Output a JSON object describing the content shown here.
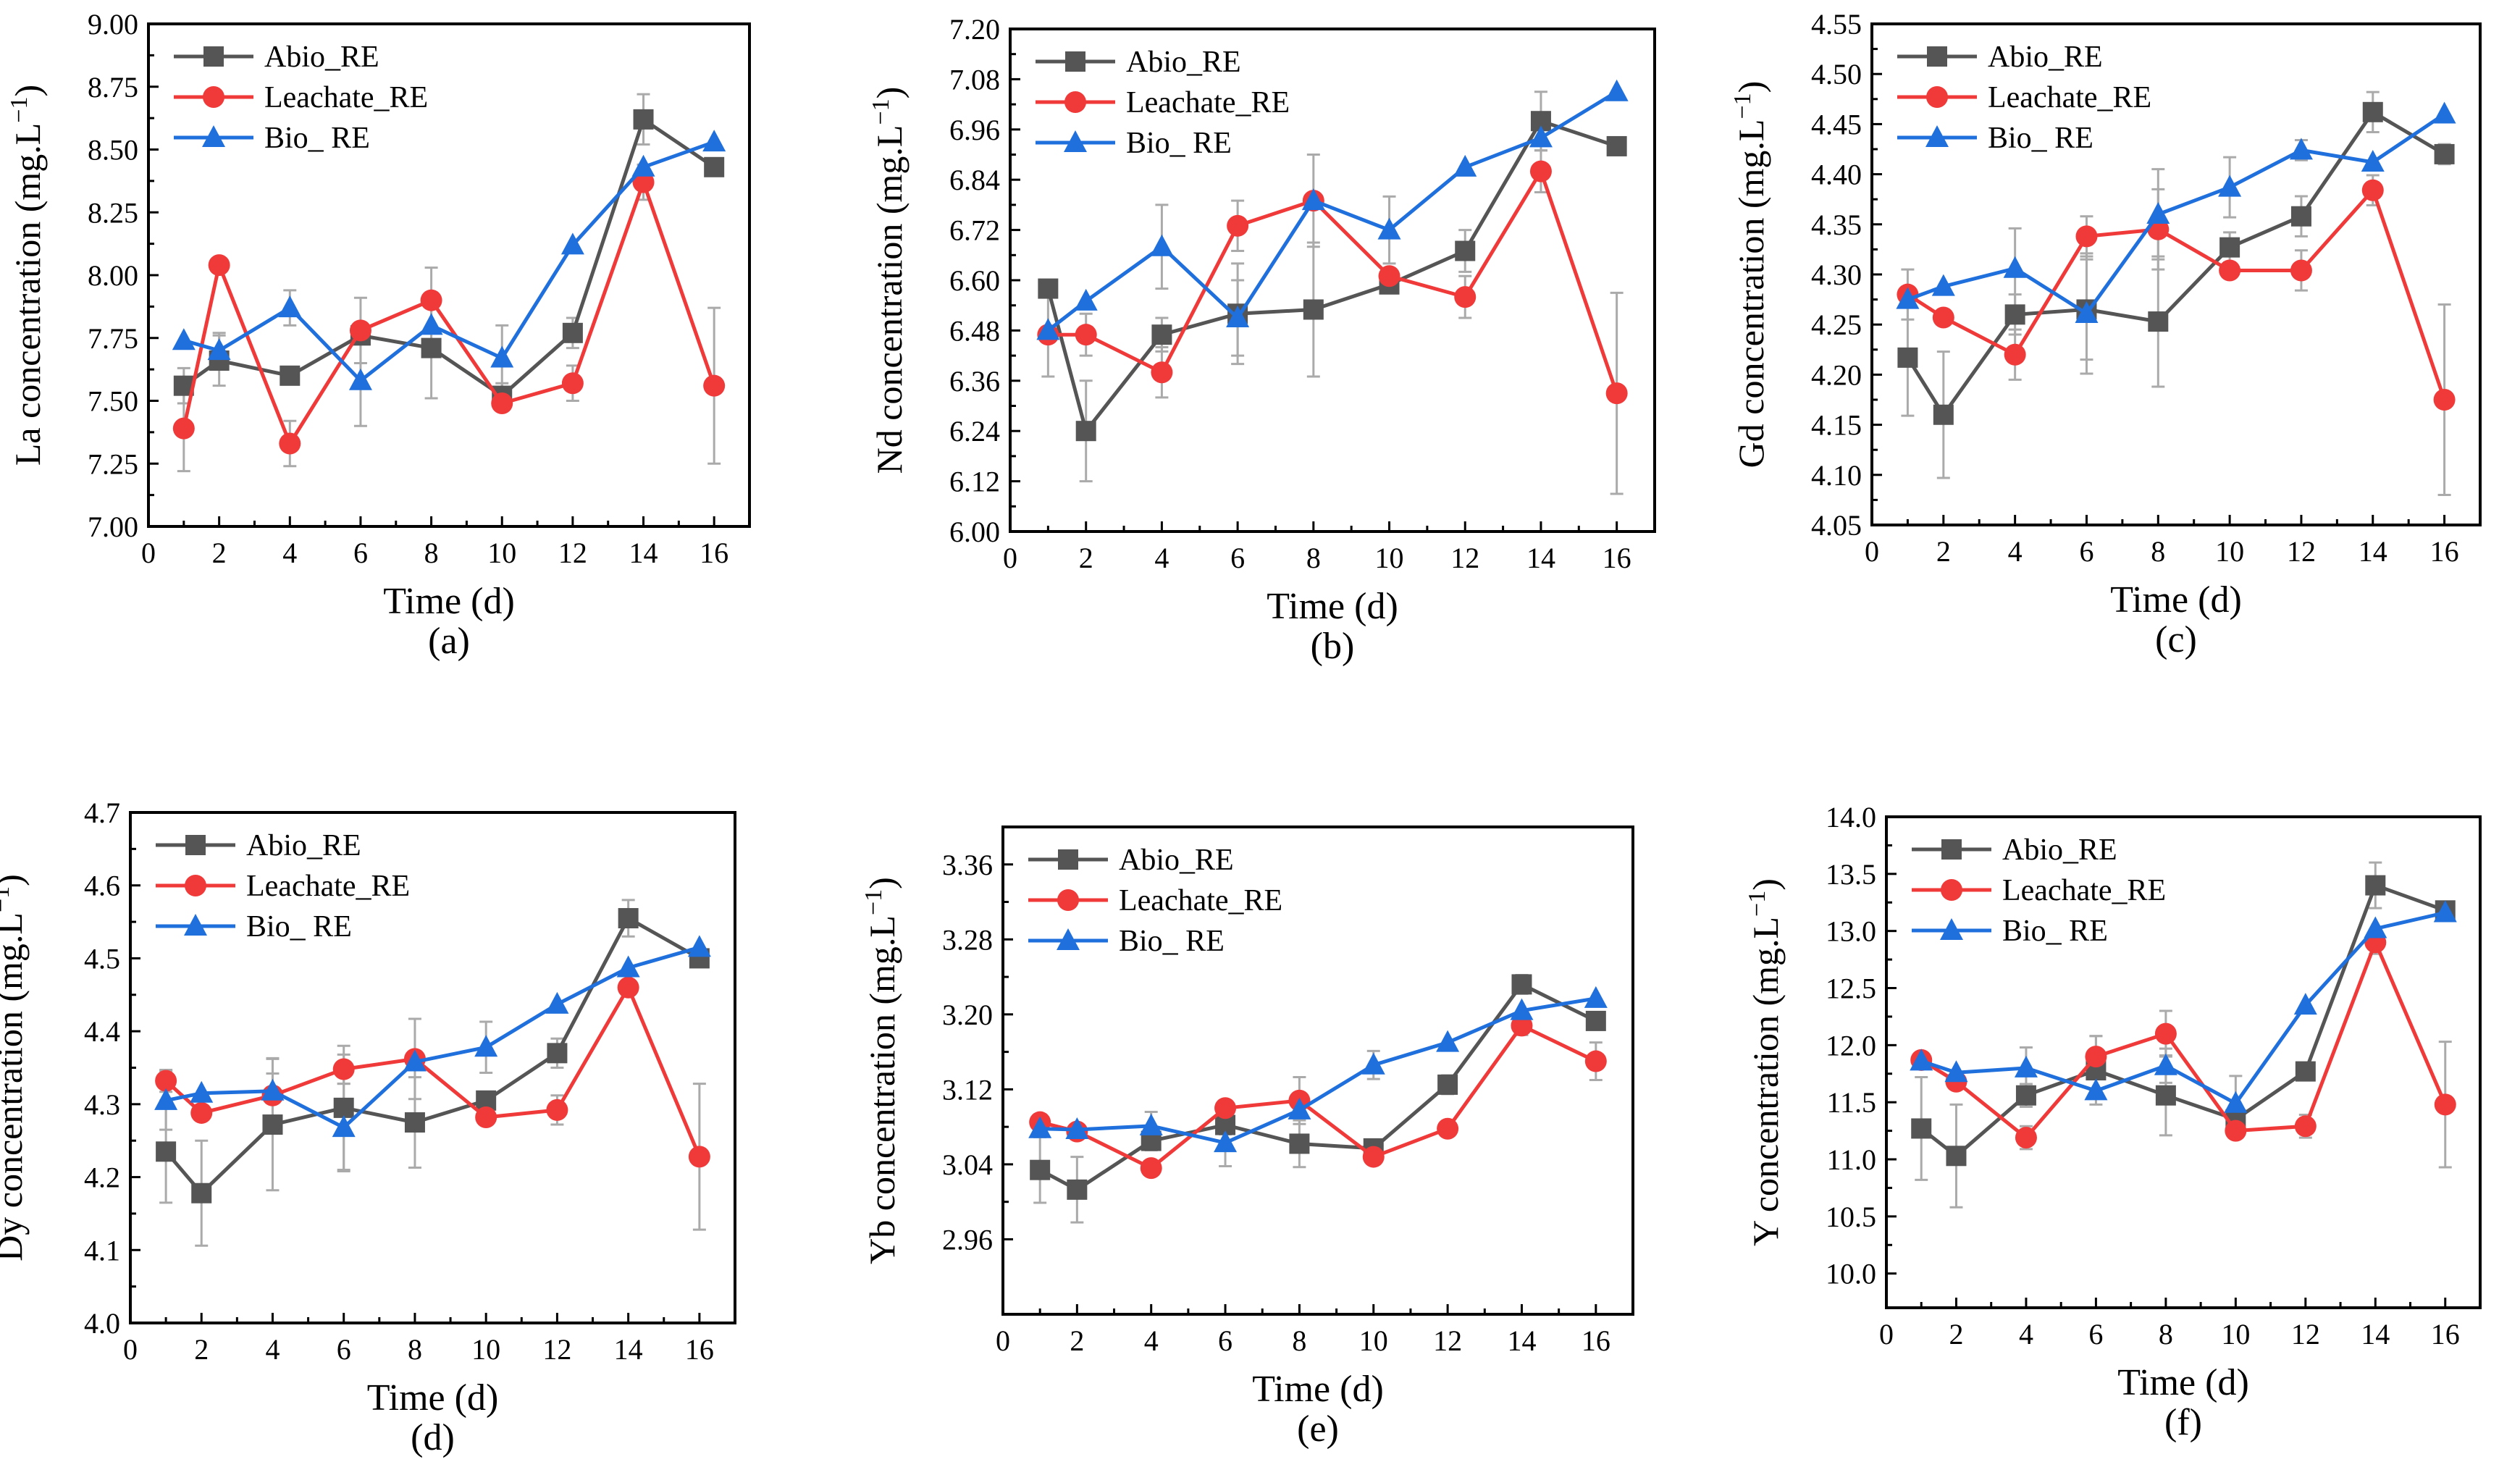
{
  "colors": {
    "abio": "#555555",
    "leachate": "#f03a3a",
    "bio": "#1f6fdc",
    "errorbar": "#aaaaaa",
    "axis": "#000000"
  },
  "legend_labels": [
    "Abio_RE",
    "Leachate_RE",
    "Bio_ RE"
  ],
  "xlabel": "Time (d)",
  "chart_data": [
    {
      "type": "line",
      "panel_label": "(a)",
      "ylabel": "La concentration (mg.L",
      "ylabel_sup": "−1",
      "legend_position": "top-left",
      "x": [
        1,
        2,
        4,
        6,
        8,
        10,
        12,
        14,
        16
      ],
      "xlim": [
        0,
        17
      ],
      "x_ticks": [
        "0",
        "2",
        "4",
        "6",
        "8",
        "10",
        "12",
        "14",
        "16"
      ],
      "ylim": [
        7.0,
        9.0
      ],
      "y_ticks": [
        "7.00",
        "7.25",
        "7.50",
        "7.75",
        "8.00",
        "8.25",
        "8.50",
        "8.75",
        "9.00"
      ],
      "series": [
        {
          "name": "Abio_RE",
          "values": [
            7.56,
            7.66,
            7.6,
            7.76,
            7.71,
            7.52,
            7.77,
            8.62,
            8.43
          ],
          "errors": [
            0.07,
            0.1,
            0.0,
            0.0,
            0.2,
            0.05,
            0.06,
            0.1,
            0.0
          ]
        },
        {
          "name": "Leachate_RE",
          "values": [
            7.39,
            8.04,
            7.33,
            7.78,
            7.9,
            7.49,
            7.57,
            8.37,
            7.56
          ],
          "errors": [
            0.17,
            0.0,
            0.09,
            0.13,
            0.13,
            0.0,
            0.07,
            0.07,
            0.31
          ]
        },
        {
          "name": "Bio_ RE",
          "values": [
            7.74,
            7.7,
            7.87,
            7.58,
            7.8,
            7.67,
            8.12,
            8.43,
            8.53
          ],
          "errors": [
            0.0,
            0.07,
            0.07,
            0.18,
            0.0,
            0.13,
            0.0,
            0.0,
            0.0
          ]
        }
      ]
    },
    {
      "type": "line",
      "panel_label": "(b)",
      "ylabel": "Nd concentration (mg.L",
      "ylabel_sup": "−1",
      "legend_position": "top-left",
      "x": [
        1,
        2,
        4,
        6,
        8,
        10,
        12,
        14,
        16
      ],
      "xlim": [
        0,
        17
      ],
      "x_ticks": [
        "0",
        "2",
        "4",
        "6",
        "8",
        "10",
        "12",
        "14",
        "16"
      ],
      "ylim": [
        6.0,
        7.2
      ],
      "y_ticks": [
        "6.00",
        "6.12",
        "6.24",
        "6.36",
        "6.48",
        "6.60",
        "6.72",
        "6.84",
        "6.96",
        "7.08",
        "7.20"
      ],
      "series": [
        {
          "name": "Abio_RE",
          "values": [
            6.58,
            6.24,
            6.47,
            6.52,
            6.53,
            6.59,
            6.67,
            6.98,
            6.92
          ],
          "errors": [
            0.0,
            0.12,
            0.04,
            0.12,
            0.16,
            0.0,
            0.05,
            0.07,
            0.0
          ]
        },
        {
          "name": "Leachate_RE",
          "values": [
            6.47,
            6.47,
            6.38,
            6.73,
            6.79,
            6.61,
            6.56,
            6.86,
            6.33
          ],
          "errors": [
            0.1,
            0.05,
            0.06,
            0.06,
            0.11,
            0.0,
            0.05,
            0.05,
            0.24
          ]
        },
        {
          "name": "Bio_ RE",
          "values": [
            6.48,
            6.55,
            6.68,
            6.51,
            6.79,
            6.72,
            6.87,
            6.94,
            7.05
          ],
          "errors": [
            0.0,
            0.0,
            0.1,
            0.09,
            0.0,
            0.08,
            0.0,
            0.0,
            0.0
          ]
        }
      ]
    },
    {
      "type": "line",
      "panel_label": "(c)",
      "ylabel": "Gd concentration (mg.L",
      "ylabel_sup": "−1",
      "legend_position": "top-left",
      "x": [
        1,
        2,
        4,
        6,
        8,
        10,
        12,
        14,
        16
      ],
      "xlim": [
        0,
        17
      ],
      "x_ticks": [
        "0",
        "2",
        "4",
        "6",
        "8",
        "10",
        "12",
        "14",
        "16"
      ],
      "ylim": [
        4.05,
        4.55
      ],
      "y_ticks": [
        "4.05",
        "4.10",
        "4.15",
        "4.20",
        "4.25",
        "4.30",
        "4.35",
        "4.40",
        "4.45",
        "4.50",
        "4.55"
      ],
      "series": [
        {
          "name": "Abio_RE",
          "values": [
            4.217,
            4.16,
            4.26,
            4.265,
            4.253,
            4.327,
            4.358,
            4.462,
            4.42
          ],
          "errors": [
            0.058,
            0.063,
            0.02,
            0.05,
            0.065,
            0.015,
            0.02,
            0.02,
            0.01
          ]
        },
        {
          "name": "Leachate_RE",
          "values": [
            4.28,
            4.257,
            4.22,
            4.338,
            4.345,
            4.304,
            4.304,
            4.384,
            4.175
          ],
          "errors": [
            0.025,
            0.0,
            0.025,
            0.02,
            0.04,
            0.0,
            0.02,
            0.015,
            0.095
          ]
        },
        {
          "name": "Bio_ RE",
          "values": [
            4.275,
            4.288,
            4.306,
            4.261,
            4.36,
            4.387,
            4.424,
            4.412,
            4.46
          ],
          "errors": [
            0.0,
            0.0,
            0.04,
            0.06,
            0.045,
            0.03,
            0.01,
            0.0,
            0.0
          ]
        }
      ]
    },
    {
      "type": "line",
      "panel_label": "(d)",
      "ylabel": "Dy concentration (mg.L",
      "ylabel_sup": "−1",
      "legend_position": "top-left",
      "x": [
        1,
        2,
        4,
        6,
        8,
        10,
        12,
        14,
        16
      ],
      "xlim": [
        0,
        17
      ],
      "x_ticks": [
        "0",
        "2",
        "4",
        "6",
        "8",
        "10",
        "12",
        "14",
        "16"
      ],
      "ylim": [
        4.0,
        4.7
      ],
      "y_ticks": [
        "4.0",
        "4.1",
        "4.2",
        "4.3",
        "4.4",
        "4.5",
        "4.6",
        "4.7"
      ],
      "series": [
        {
          "name": "Abio_RE",
          "values": [
            4.235,
            4.178,
            4.272,
            4.295,
            4.275,
            4.305,
            4.37,
            4.555,
            4.5
          ],
          "errors": [
            0.07,
            0.072,
            0.09,
            0.085,
            0.062,
            0.01,
            0.02,
            0.025,
            0.0
          ]
        },
        {
          "name": "Leachate_RE",
          "values": [
            4.332,
            4.288,
            4.312,
            4.348,
            4.362,
            4.282,
            4.292,
            4.46,
            4.228
          ],
          "errors": [
            0.015,
            0.0,
            0.03,
            0.02,
            0.055,
            0.0,
            0.02,
            0.0,
            0.1
          ]
        },
        {
          "name": "Bio_ RE",
          "values": [
            4.305,
            4.315,
            4.318,
            4.268,
            4.358,
            4.378,
            4.437,
            4.487,
            4.515
          ],
          "errors": [
            0.04,
            0.0,
            0.045,
            0.06,
            0.0,
            0.035,
            0.0,
            0.0,
            0.0
          ]
        }
      ]
    },
    {
      "type": "line",
      "panel_label": "(e)",
      "ylabel": "Yb concentration (mg.L",
      "ylabel_sup": "−1",
      "legend_position": "top-left",
      "x": [
        1,
        2,
        4,
        6,
        8,
        10,
        12,
        14,
        16
      ],
      "xlim": [
        0,
        17
      ],
      "x_ticks": [
        "0",
        "2",
        "4",
        "6",
        "8",
        "10",
        "12",
        "14",
        "16"
      ],
      "ylim": [
        2.88,
        3.4
      ],
      "y_ticks": [
        "2.96",
        "3.04",
        "3.12",
        "3.20",
        "3.28",
        "3.36"
      ],
      "series": [
        {
          "name": "Abio_RE",
          "values": [
            3.034,
            3.013,
            3.065,
            3.082,
            3.062,
            3.057,
            3.125,
            3.232,
            3.193
          ],
          "errors": [
            0.035,
            0.035,
            0.01,
            0.01,
            0.025,
            0.0,
            0.01,
            0.01,
            0.0
          ]
        },
        {
          "name": "Leachate_RE",
          "values": [
            3.085,
            3.075,
            3.036,
            3.1,
            3.108,
            3.048,
            3.078,
            3.188,
            3.15
          ],
          "errors": [
            0.0,
            0.0,
            0.008,
            0.005,
            0.025,
            0.0,
            0.0,
            0.01,
            0.02
          ]
        },
        {
          "name": "Bio_ RE",
          "values": [
            3.078,
            3.077,
            3.081,
            3.063,
            3.098,
            3.146,
            3.17,
            3.204,
            3.217
          ],
          "errors": [
            0.0,
            0.0,
            0.015,
            0.025,
            0.0,
            0.015,
            0.0,
            0.0,
            0.0
          ]
        }
      ]
    },
    {
      "type": "line",
      "panel_label": "(f)",
      "ylabel": "Y concentration (mg.L",
      "ylabel_sup": "−1",
      "legend_position": "top-left",
      "x": [
        1,
        2,
        4,
        6,
        8,
        10,
        12,
        14,
        16
      ],
      "xlim": [
        0,
        17
      ],
      "x_ticks": [
        "0",
        "2",
        "4",
        "6",
        "8",
        "10",
        "12",
        "14",
        "16"
      ],
      "ylim": [
        9.7,
        14.0
      ],
      "y_ticks": [
        "10.0",
        "10.5",
        "11.0",
        "11.5",
        "12.0",
        "12.5",
        "13.0",
        "13.5",
        "14.0"
      ],
      "series": [
        {
          "name": "Abio_RE",
          "values": [
            11.27,
            11.03,
            11.56,
            11.78,
            11.56,
            11.35,
            11.77,
            13.4,
            13.18
          ],
          "errors": [
            0.45,
            0.45,
            0.1,
            0.3,
            0.35,
            0.0,
            0.05,
            0.2,
            0.0
          ]
        },
        {
          "name": "Leachate_RE",
          "values": [
            11.87,
            11.68,
            11.19,
            11.9,
            12.1,
            11.25,
            11.29,
            12.9,
            11.48
          ],
          "errors": [
            0.0,
            0.0,
            0.1,
            0.18,
            0.2,
            0.0,
            0.1,
            0.1,
            0.55
          ]
        },
        {
          "name": "Bio_ RE",
          "values": [
            11.86,
            11.76,
            11.8,
            11.6,
            11.82,
            11.49,
            12.35,
            13.02,
            13.16
          ],
          "errors": [
            0.0,
            0.0,
            0.18,
            0.0,
            0.15,
            0.24,
            0.0,
            0.0,
            0.0
          ]
        }
      ]
    }
  ]
}
